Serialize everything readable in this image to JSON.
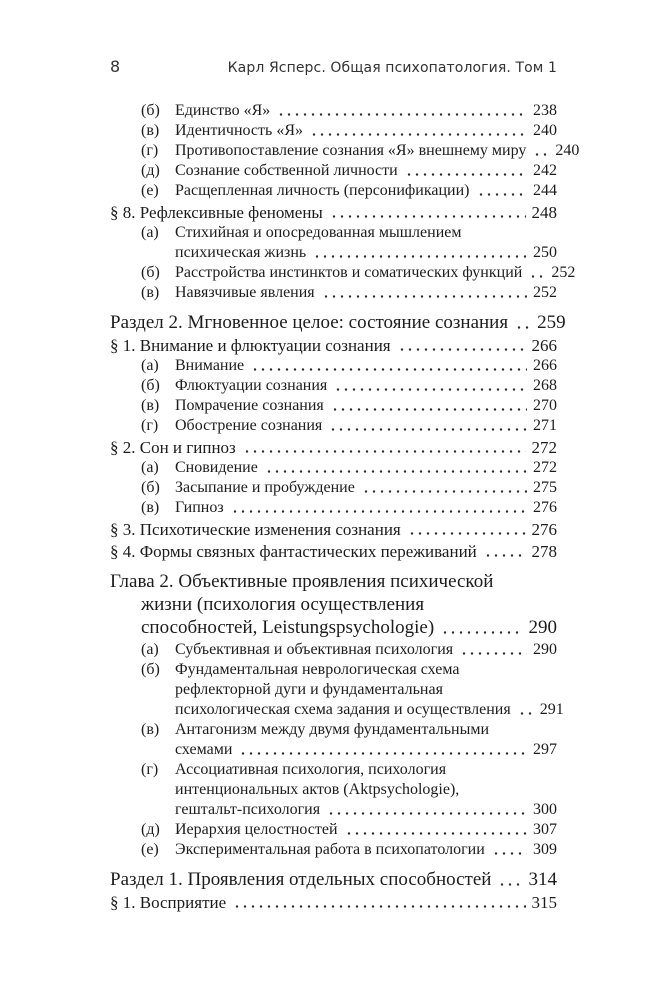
{
  "page": {
    "number": "8",
    "running_title": "Карл Ясперс. Общая психопатология. Том 1"
  },
  "colors": {
    "background": "#ffffff",
    "text": "#1c1c1c",
    "header_text": "#333333",
    "dot": "#2b2b2b"
  },
  "toc": {
    "entries": [
      {
        "level": "sub",
        "label": "(б)",
        "lines": [
          "Единство «Я»"
        ],
        "page": "238"
      },
      {
        "level": "sub",
        "label": "(в)",
        "lines": [
          "Идентичность «Я»"
        ],
        "page": "240"
      },
      {
        "level": "sub",
        "label": "(г)",
        "lines": [
          "Противопоставление сознания «Я» внешнему миру"
        ],
        "page": "240"
      },
      {
        "level": "sub",
        "label": "(д)",
        "lines": [
          "Сознание собственной личности"
        ],
        "page": "242"
      },
      {
        "level": "sub",
        "label": "(е)",
        "lines": [
          "Расщепленная личность (персонификации)"
        ],
        "page": "244"
      },
      {
        "level": "para",
        "label": "§ 8.",
        "lines": [
          "Рефлексивные феномены"
        ],
        "page": "248"
      },
      {
        "level": "sub",
        "label": "(а)",
        "lines": [
          "Стихийная и опосредованная мышлением",
          "психическая жизнь"
        ],
        "page": "250"
      },
      {
        "level": "sub",
        "label": "(б)",
        "lines": [
          "Расстройства инстинктов и соматических функций"
        ],
        "page": "252"
      },
      {
        "level": "sub",
        "label": "(в)",
        "lines": [
          "Навязчивые явления"
        ],
        "page": "252"
      },
      {
        "level": "section",
        "label": "Раздел 2.",
        "lines": [
          "Мгновенное целое: состояние сознания"
        ],
        "page": "259"
      },
      {
        "level": "para",
        "label": "§ 1.",
        "lines": [
          "Внимание и флюктуации сознания"
        ],
        "page": "266"
      },
      {
        "level": "sub",
        "label": "(а)",
        "lines": [
          "Внимание"
        ],
        "page": "266"
      },
      {
        "level": "sub",
        "label": "(б)",
        "lines": [
          "Флюктуации сознания"
        ],
        "page": "268"
      },
      {
        "level": "sub",
        "label": "(в)",
        "lines": [
          "Помрачение сознания"
        ],
        "page": "270"
      },
      {
        "level": "sub",
        "label": "(г)",
        "lines": [
          "Обострение сознания"
        ],
        "page": "271"
      },
      {
        "level": "para",
        "label": "§ 2.",
        "lines": [
          "Сон и гипноз"
        ],
        "page": "272"
      },
      {
        "level": "sub",
        "label": "(а)",
        "lines": [
          "Сновидение"
        ],
        "page": "272"
      },
      {
        "level": "sub",
        "label": "(б)",
        "lines": [
          "Засыпание и пробуждение"
        ],
        "page": "275"
      },
      {
        "level": "sub",
        "label": "(в)",
        "lines": [
          "Гипноз"
        ],
        "page": "276"
      },
      {
        "level": "para",
        "label": "§ 3.",
        "lines": [
          "Психотические изменения сознания"
        ],
        "page": "276"
      },
      {
        "level": "para",
        "label": "§ 4.",
        "lines": [
          "Формы связных фантастических переживаний"
        ],
        "page": "278"
      },
      {
        "level": "section",
        "label": "Глава 2.",
        "lines": [
          "Объективные проявления психической",
          "жизни (психология осуществления",
          "способностей, Leistungspsychologie)"
        ],
        "page": "290"
      },
      {
        "level": "sub",
        "label": "(а)",
        "lines": [
          "Субъективная и объективная психология"
        ],
        "page": "290"
      },
      {
        "level": "sub",
        "label": "(б)",
        "lines": [
          "Фундаментальная неврологическая схема",
          "рефлекторной дуги и фундаментальная",
          "психологическая схема задания и осуществления"
        ],
        "page": "291"
      },
      {
        "level": "sub",
        "label": "(в)",
        "lines": [
          "Антагонизм между двумя фундаментальными",
          "схемами"
        ],
        "page": "297"
      },
      {
        "level": "sub",
        "label": "(г)",
        "lines": [
          "Ассоциативная психология, психология",
          "интенциональных актов (Aktpsychologie),",
          "гештальт-психология"
        ],
        "page": "300"
      },
      {
        "level": "sub",
        "label": "(д)",
        "lines": [
          "Иерархия целостностей"
        ],
        "page": "307"
      },
      {
        "level": "sub",
        "label": "(е)",
        "lines": [
          "Экспериментальная работа в психопатологии"
        ],
        "page": "309"
      },
      {
        "level": "section",
        "label": "Раздел 1.",
        "lines": [
          "Проявления отдельных способностей"
        ],
        "page": "314"
      },
      {
        "level": "para",
        "label": "§ 1.",
        "lines": [
          "Восприятие"
        ],
        "page": "315"
      }
    ]
  }
}
